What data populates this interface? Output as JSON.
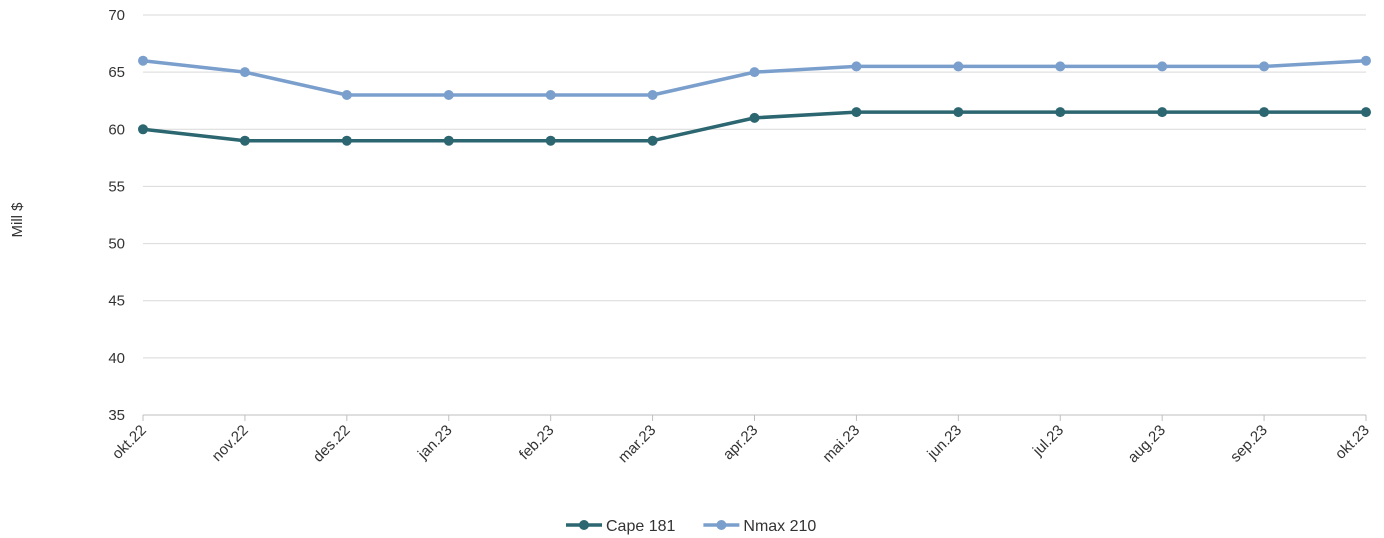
{
  "chart_data": {
    "type": "line",
    "title": "",
    "xlabel": "",
    "ylabel": "Mill $",
    "ylim": [
      35,
      70
    ],
    "yticks": [
      35,
      40,
      45,
      50,
      55,
      60,
      65,
      70
    ],
    "grid": true,
    "legend_position": "bottom-center",
    "categories": [
      "okt.22",
      "nov.22",
      "des.22",
      "jan.23",
      "feb.23",
      "mar.23",
      "apr.23",
      "mai.23",
      "jun.23",
      "jul.23",
      "aug.23",
      "sep.23",
      "okt.23"
    ],
    "series": [
      {
        "name": "Cape 181",
        "color": "#2c6670",
        "values": [
          60,
          59,
          59,
          59,
          59,
          59,
          61,
          61.5,
          61.5,
          61.5,
          61.5,
          61.5,
          61.5
        ]
      },
      {
        "name": "Nmax 210",
        "color": "#7a9fcd",
        "values": [
          66,
          65,
          63,
          63,
          63,
          63,
          65,
          65.5,
          65.5,
          65.5,
          65.5,
          65.5,
          66
        ]
      }
    ]
  }
}
